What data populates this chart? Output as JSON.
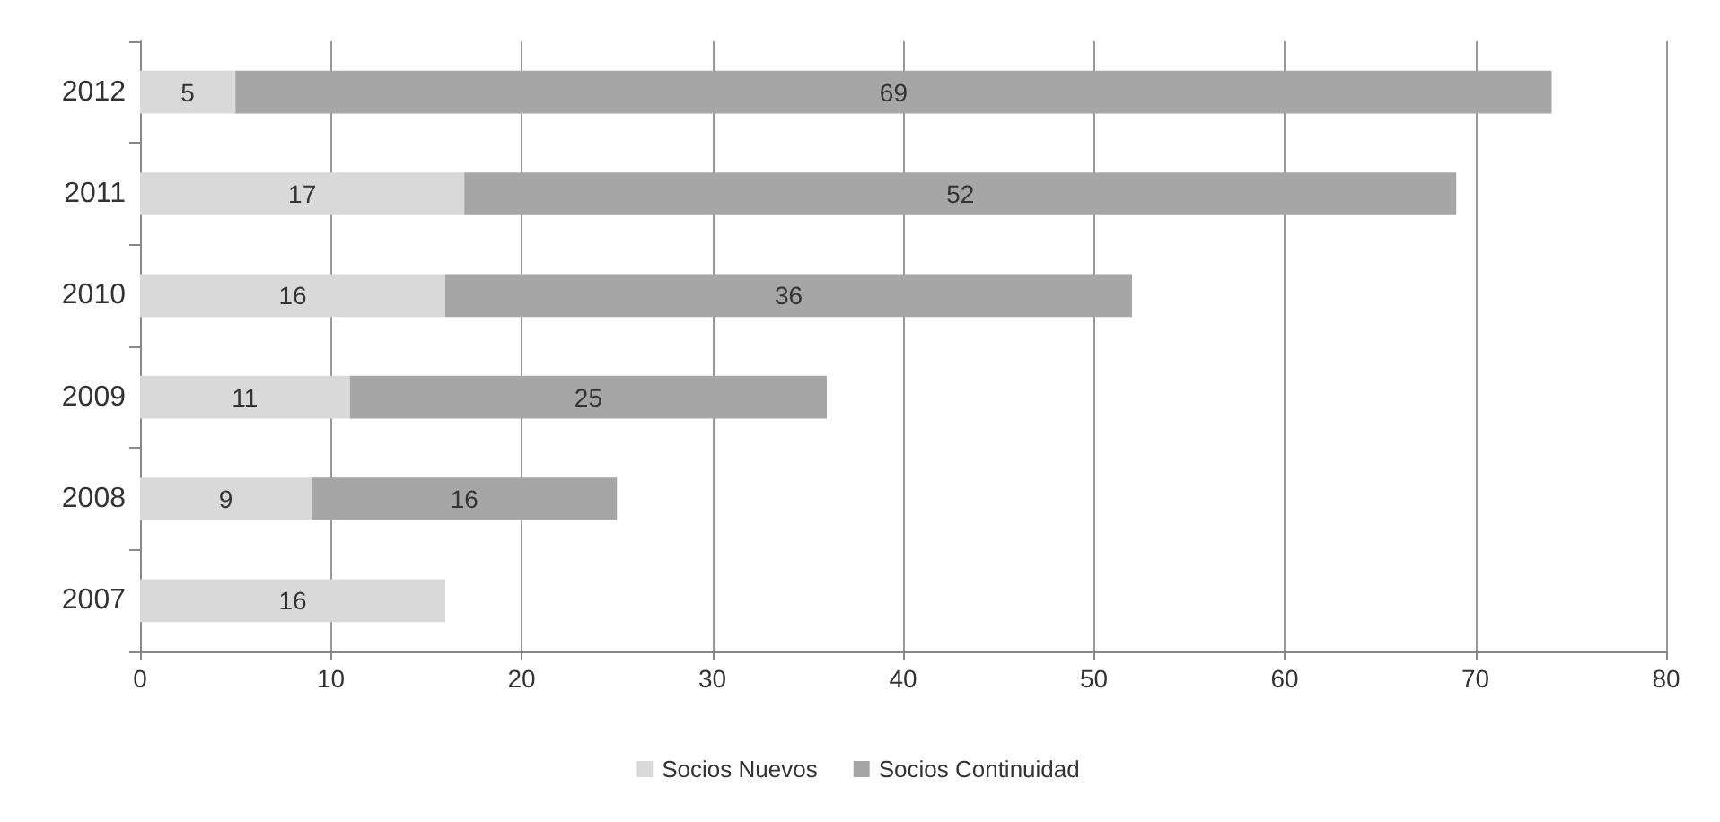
{
  "chart_data": {
    "type": "bar",
    "orientation": "horizontal",
    "stacked": true,
    "categories": [
      "2012",
      "2011",
      "2010",
      "2009",
      "2008",
      "2007"
    ],
    "series": [
      {
        "name": "Socios Nuevos",
        "color": "#d9d9d9",
        "values": [
          5,
          17,
          16,
          11,
          9,
          16
        ]
      },
      {
        "name": "Socios Continuidad",
        "color": "#a6a6a6",
        "values": [
          69,
          52,
          36,
          25,
          16,
          null
        ]
      }
    ],
    "xlim": [
      0,
      80
    ],
    "xticks": [
      0,
      10,
      20,
      30,
      40,
      50,
      60,
      70,
      80
    ],
    "grid": "x",
    "legend": "bottom",
    "data_labels": true
  }
}
